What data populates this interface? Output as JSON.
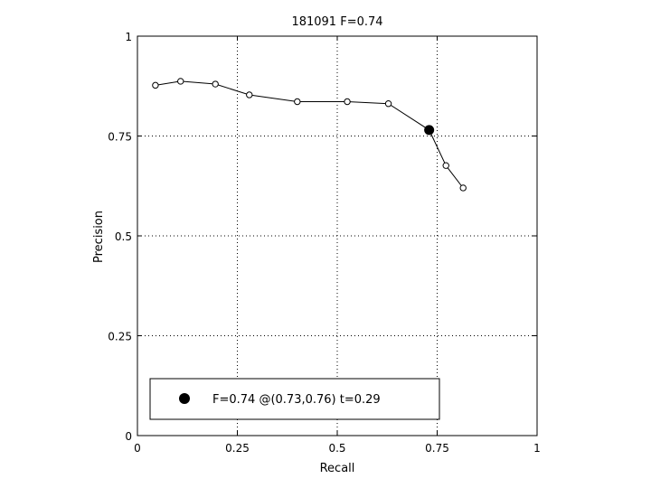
{
  "chart_data": {
    "type": "line",
    "title": "181091 F=0.74",
    "xlabel": "Recall",
    "ylabel": "Precision",
    "xlim": [
      0,
      1
    ],
    "ylim": [
      0,
      1
    ],
    "grid": true,
    "xticks": [
      0,
      0.25,
      0.5,
      0.75,
      1
    ],
    "yticks": [
      0,
      0.25,
      0.5,
      0.75,
      1
    ],
    "xtick_labels": [
      "0",
      "0.25",
      "0.5",
      "0.75",
      "1"
    ],
    "ytick_labels": [
      "0",
      "0.25",
      "0.5",
      "0.75",
      "1"
    ],
    "series": [
      {
        "x": [
          0.045,
          0.108,
          0.195,
          0.28,
          0.4,
          0.525,
          0.628,
          0.73,
          0.772,
          0.815
        ],
        "y": [
          0.877,
          0.887,
          0.88,
          0.853,
          0.836,
          0.836,
          0.831,
          0.765,
          0.676,
          0.62
        ],
        "marker": "open-circle",
        "color": "#000000"
      }
    ],
    "highlight_point": {
      "x": 0.73,
      "y": 0.765
    },
    "legend": {
      "placement": "bottom-left",
      "entries": [
        "F=0.74 @(0.73,0.76) t=0.29"
      ]
    }
  }
}
